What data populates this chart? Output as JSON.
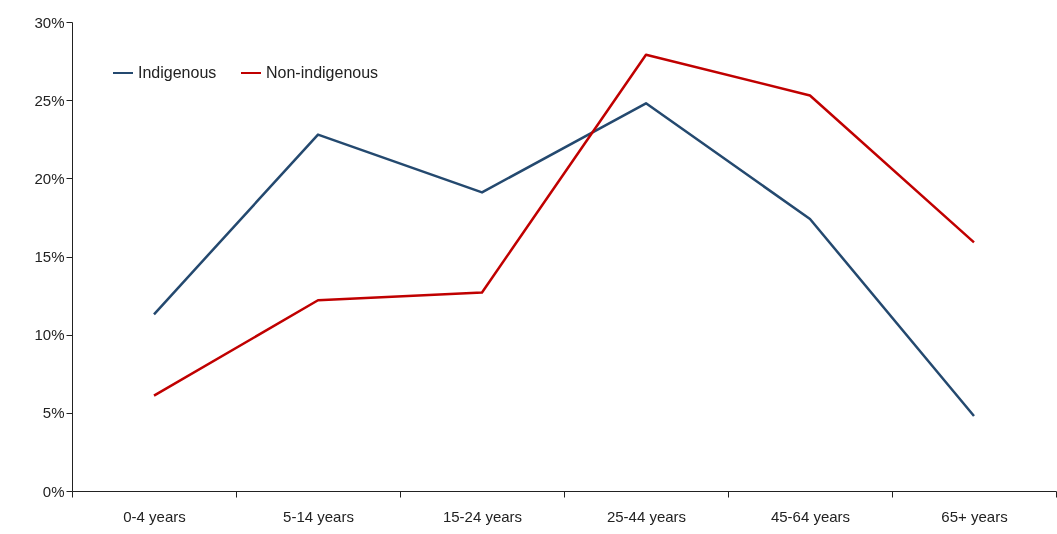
{
  "chart_data": {
    "type": "line",
    "categories": [
      "0-4 years",
      "5-14 years",
      "15-24 years",
      "25-44 years",
      "45-64 years",
      "65+ years"
    ],
    "series": [
      {
        "name": "Indigenous",
        "color": "#24496f",
        "values": [
          11.3,
          22.8,
          19.1,
          24.8,
          17.4,
          4.8
        ]
      },
      {
        "name": "Non-indigenous",
        "color": "#c00000",
        "values": [
          6.1,
          12.2,
          12.7,
          27.9,
          25.3,
          15.9
        ]
      }
    ],
    "ylim": [
      0,
      30
    ],
    "yticks": [
      {
        "value": 0,
        "label": "0%"
      },
      {
        "value": 5,
        "label": "5%"
      },
      {
        "value": 10,
        "label": "10%"
      },
      {
        "value": 15,
        "label": "15%"
      },
      {
        "value": 20,
        "label": "20%"
      },
      {
        "value": 25,
        "label": "25%"
      },
      {
        "value": 30,
        "label": "30%"
      }
    ],
    "grid": false,
    "legend": "top left",
    "marker": "none",
    "line_style": "solid"
  }
}
